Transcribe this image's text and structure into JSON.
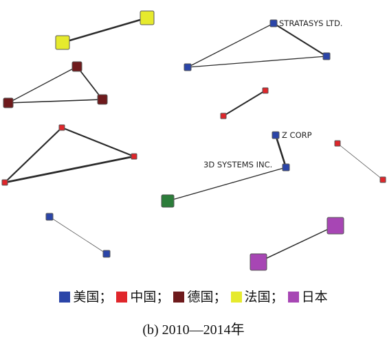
{
  "colors": {
    "us": "#2b45a8",
    "china": "#e0262b",
    "germany": "#6e1a1c",
    "france": "#e6ea2d",
    "japan": "#a746b4",
    "other": "#2c7d3a",
    "edge": "#2a2a2a",
    "node_border": "#555555"
  },
  "node_labels": {
    "stratasys": "STRATASYS LTD.",
    "zcorp": "Z CORP",
    "3dsystems": "3D SYSTEMS INC."
  },
  "legend": [
    {
      "color": "#2b45a8",
      "label": "美国；"
    },
    {
      "color": "#e0262b",
      "label": "中国；"
    },
    {
      "color": "#6e1a1c",
      "label": "德国；"
    },
    {
      "color": "#e6ea2d",
      "label": "法国；"
    },
    {
      "color": "#a746b4",
      "label": "日本"
    }
  ],
  "caption": "(b) 2010—2014年"
}
